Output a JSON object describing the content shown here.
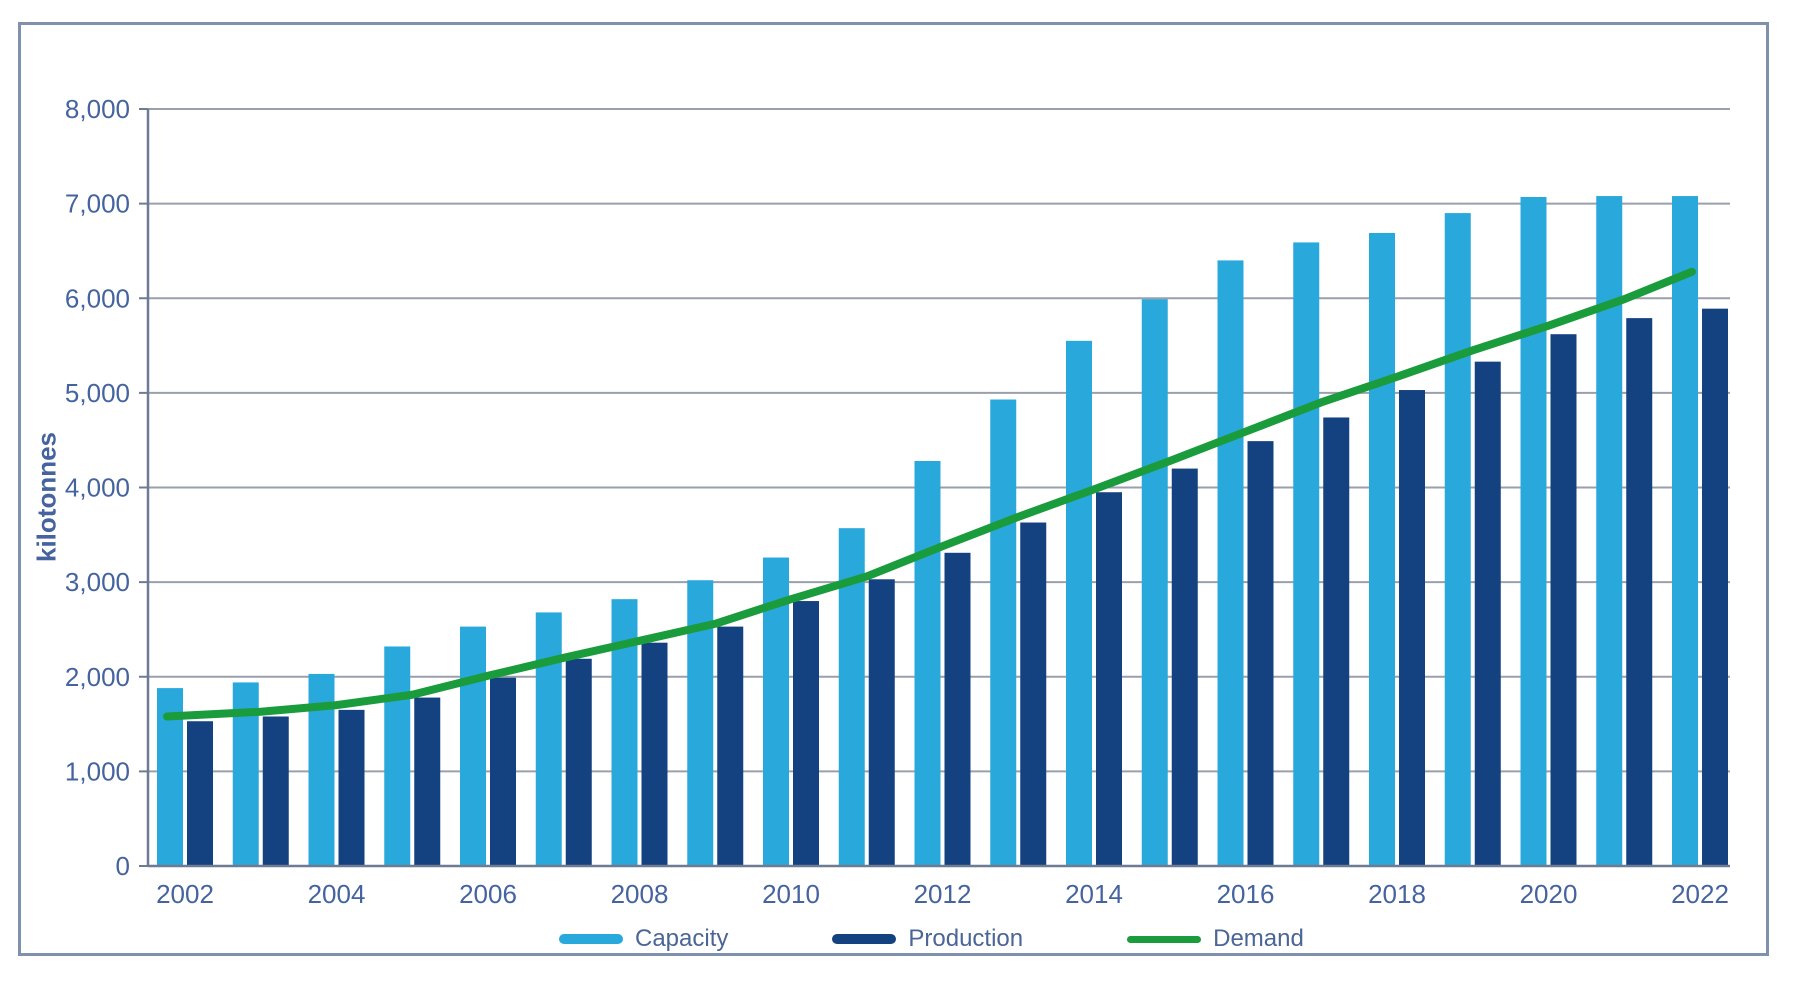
{
  "figure": {
    "background": "#ffffff",
    "frame_border_color": "#7f91ad"
  },
  "chart_data": {
    "type": "bar+line",
    "title": "",
    "xlabel": "",
    "ylabel": "kilotonnes",
    "ylim": [
      0,
      8000
    ],
    "ytick_step": 1000,
    "ytick_labels": [
      "0",
      "1,000",
      "2,000",
      "3,000",
      "4,000",
      "5,000",
      "6,000",
      "7,000",
      "8,000"
    ],
    "x": [
      2002,
      2003,
      2004,
      2005,
      2006,
      2007,
      2008,
      2009,
      2010,
      2011,
      2012,
      2013,
      2014,
      2015,
      2016,
      2017,
      2018,
      2019,
      2020,
      2021,
      2022
    ],
    "xtick_labels": [
      "2002",
      "2004",
      "2006",
      "2008",
      "2010",
      "2012",
      "2014",
      "2016",
      "2018",
      "2020",
      "2022"
    ],
    "grid": true,
    "legend_position": "bottom",
    "series": [
      {
        "name": "Capacity",
        "type": "bar",
        "color": "#29a8dc",
        "values": [
          1880,
          1940,
          2030,
          2320,
          2530,
          2680,
          2820,
          3020,
          3260,
          3570,
          4280,
          4930,
          5550,
          5990,
          6400,
          6590,
          6690,
          6900,
          7070,
          7080,
          7080
        ]
      },
      {
        "name": "Production",
        "type": "bar",
        "color": "#14417f",
        "values": [
          1530,
          1580,
          1650,
          1780,
          1990,
          2190,
          2360,
          2530,
          2800,
          3030,
          3310,
          3630,
          3950,
          4200,
          4490,
          4740,
          5030,
          5330,
          5620,
          5790,
          5890
        ]
      },
      {
        "name": "Demand",
        "type": "line",
        "color": "#1a9c3c",
        "values": [
          1580,
          1630,
          1700,
          1810,
          2010,
          2200,
          2380,
          2560,
          2820,
          3060,
          3380,
          3690,
          3980,
          4280,
          4590,
          4900,
          5170,
          5450,
          5710,
          5990,
          6280
        ]
      }
    ],
    "axis_text_color": "#45639f",
    "gridline_color": "#9aa0ab",
    "axis_line_color": "#6d7c93"
  }
}
